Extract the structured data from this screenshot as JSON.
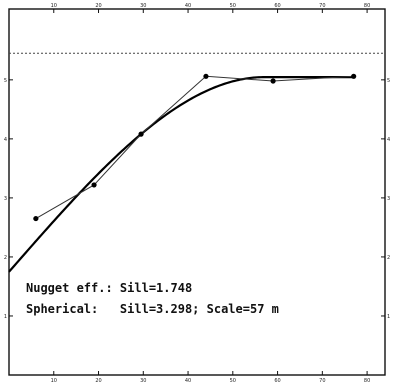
{
  "chart_data": {
    "type": "line",
    "x_axis_ticks": [
      10,
      20,
      30,
      40,
      50,
      60,
      70,
      80
    ],
    "y_axis_ticks": [
      1,
      2,
      3,
      4,
      5
    ],
    "xlim": [
      0,
      84
    ],
    "ylim": [
      0,
      6.2
    ],
    "reference_line": {
      "y": 5.45,
      "style": "dashed"
    },
    "series": [
      {
        "kind": "experimental",
        "markers": true,
        "x": [
          6,
          19,
          29.5,
          44,
          59,
          77
        ],
        "y": [
          2.65,
          3.22,
          4.08,
          5.06,
          4.98,
          5.06
        ]
      },
      {
        "kind": "spherical-model",
        "markers": false,
        "nugget": 1.748,
        "sill": 3.298,
        "range": 57
      }
    ],
    "annotations": [
      "Nugget eff.: Sill=1.748",
      "Spherical:   Sill=3.298; Scale=57 m"
    ]
  },
  "colors": {
    "frame": "#111111",
    "experimental_line": "#333333",
    "model_line": "#000000",
    "reference_line": "#444444"
  }
}
